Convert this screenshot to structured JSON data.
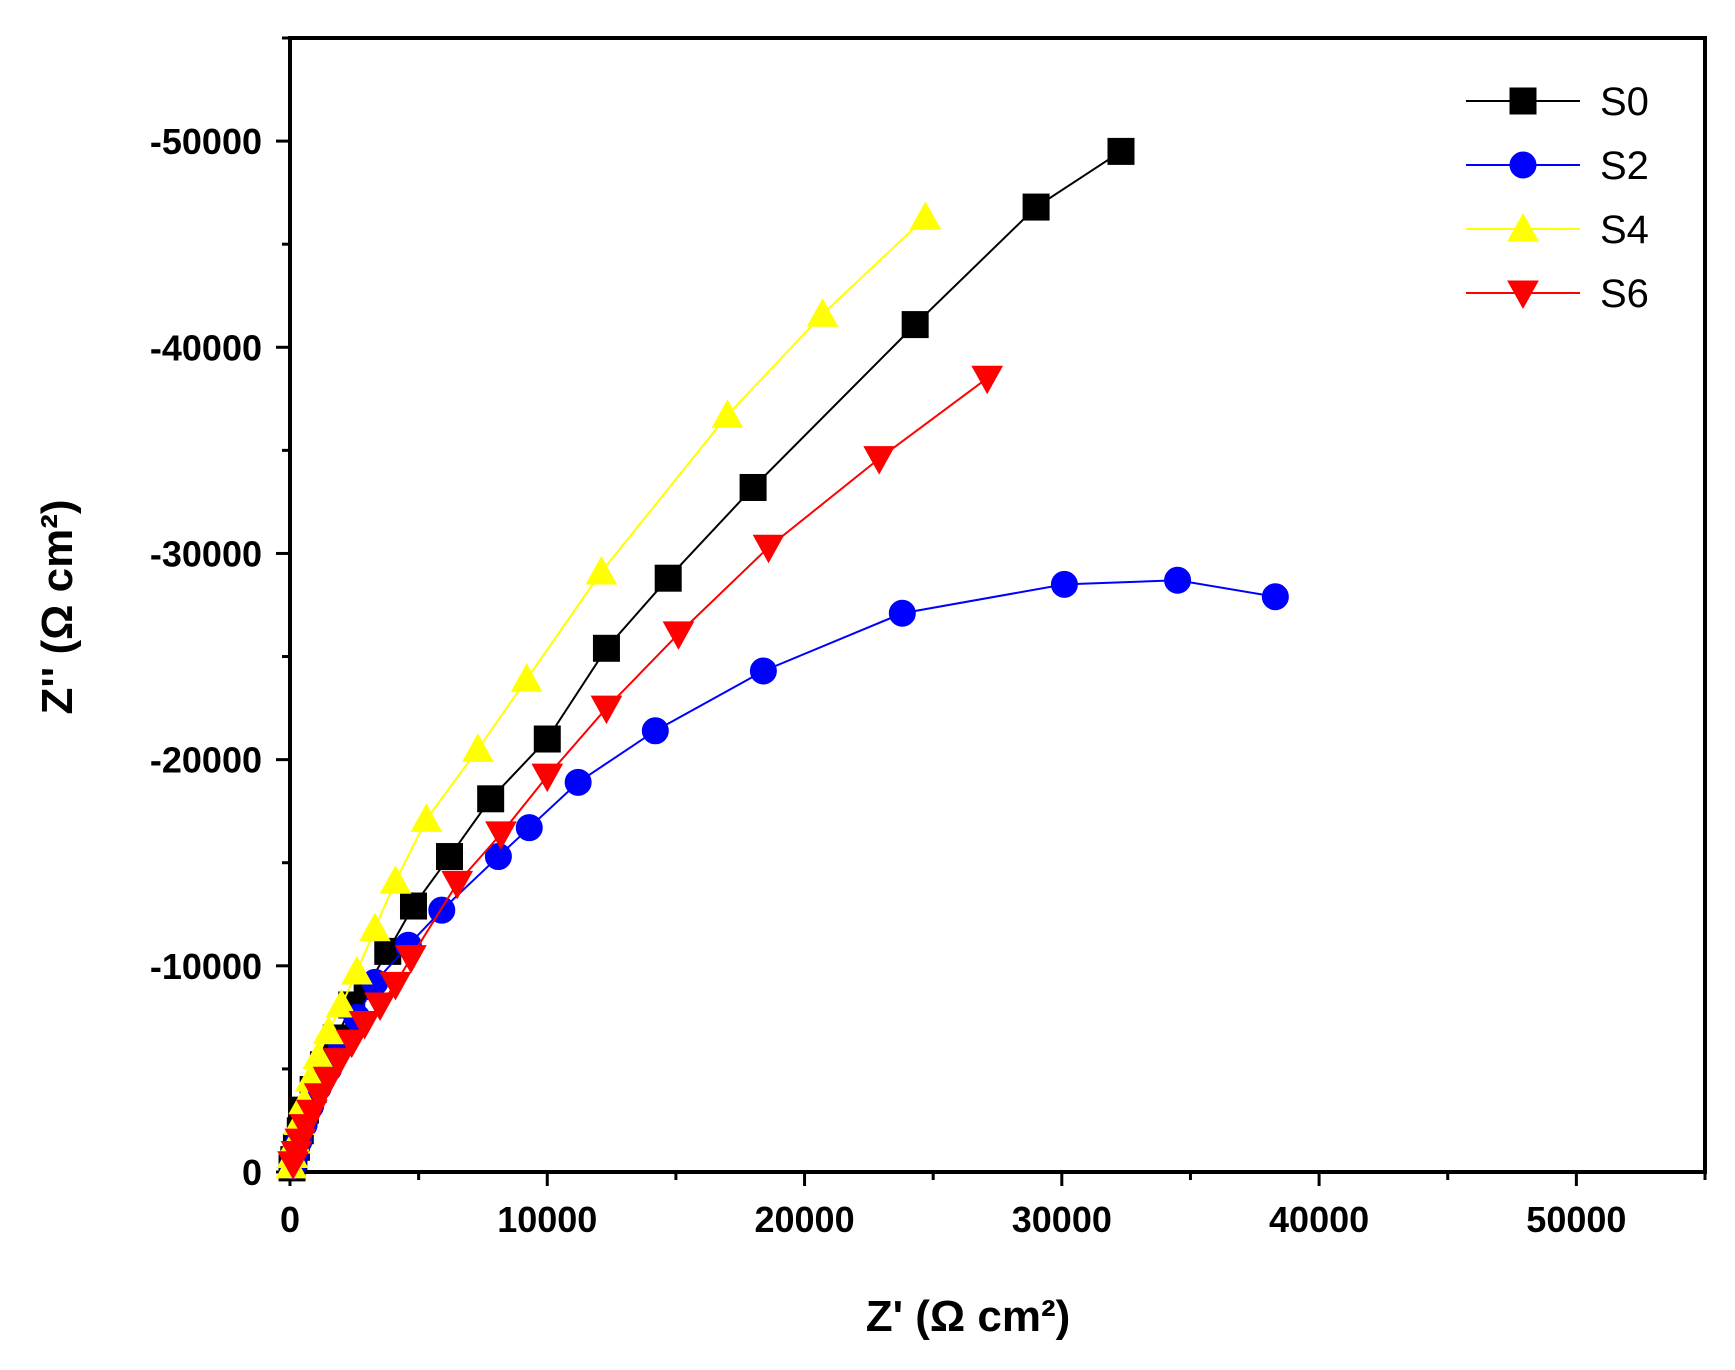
{
  "chart_data": {
    "type": "scatter",
    "title": "",
    "xlabel": "Z' (Ω cm²)",
    "ylabel": "Z'' (Ω cm²)",
    "xlim": [
      0,
      55000
    ],
    "ylim": [
      0,
      -55000
    ],
    "x_ticks": [
      0,
      10000,
      20000,
      30000,
      40000,
      50000
    ],
    "y_ticks": [
      0,
      -10000,
      -20000,
      -30000,
      -40000,
      -50000
    ],
    "x_tick_labels": [
      "0",
      "10000",
      "20000",
      "30000",
      "40000",
      "50000"
    ],
    "y_tick_labels": [
      "0",
      "-10000",
      "-20000",
      "-30000",
      "-40000",
      "-50000"
    ],
    "grid": false,
    "legend_position": "top-right",
    "series": [
      {
        "name": "S0",
        "color": "#000000",
        "marker": "square",
        "x": [
          80,
          150,
          250,
          400,
          600,
          900,
          1300,
          1800,
          2400,
          3000,
          3800,
          4800,
          6200,
          7800,
          10000,
          12300,
          14700,
          18000,
          24300,
          29000,
          32300
        ],
        "y": [
          -200,
          -600,
          -1200,
          -2000,
          -3000,
          -4000,
          -5200,
          -6500,
          -8100,
          -9000,
          -10700,
          -12900,
          -15300,
          -18100,
          -21000,
          -25400,
          -28800,
          -33200,
          -41100,
          -46800,
          -49500
        ]
      },
      {
        "name": "S2",
        "color": "#0000ff",
        "marker": "circle",
        "x": [
          100,
          200,
          350,
          550,
          800,
          1100,
          1500,
          2000,
          2600,
          3300,
          4600,
          5900,
          8100,
          9300,
          11200,
          14200,
          18400,
          23800,
          30100,
          34500,
          38300
        ],
        "y": [
          -300,
          -800,
          -1500,
          -2300,
          -3200,
          -4100,
          -5000,
          -6100,
          -7500,
          -9200,
          -11000,
          -12700,
          -15300,
          -16700,
          -18900,
          -21400,
          -24300,
          -27100,
          -28500,
          -28700,
          -27900
        ]
      },
      {
        "name": "S4",
        "color": "#ffff00",
        "marker": "triangle-up",
        "x": [
          50,
          100,
          200,
          350,
          550,
          800,
          1100,
          1500,
          2000,
          2600,
          3300,
          4100,
          5300,
          7300,
          9200,
          12100,
          17000,
          20700,
          24700
        ],
        "y": [
          -300,
          -800,
          -1500,
          -2400,
          -3400,
          -4500,
          -5600,
          -6800,
          -8100,
          -9700,
          -11800,
          -14100,
          -17100,
          -20500,
          -23900,
          -29100,
          -36700,
          -41600,
          -46300
        ]
      },
      {
        "name": "S6",
        "color": "#ff0000",
        "marker": "triangle-down",
        "x": [
          120,
          250,
          400,
          600,
          850,
          1150,
          1500,
          1900,
          2400,
          2900,
          3500,
          4100,
          4700,
          6500,
          8200,
          10000,
          12300,
          15100,
          18600,
          22900,
          27100
        ],
        "y": [
          -400,
          -900,
          -1500,
          -2200,
          -2900,
          -3700,
          -4500,
          -5400,
          -6300,
          -7200,
          -8100,
          -9100,
          -10400,
          -14000,
          -16400,
          -19200,
          -22500,
          -26100,
          -30300,
          -34600,
          -38500
        ]
      }
    ]
  }
}
